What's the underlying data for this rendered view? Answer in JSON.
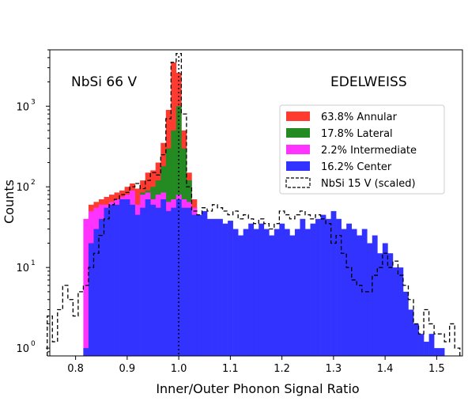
{
  "chart_data": {
    "type": "histogram",
    "xlabel": "Inner/Outer Phonon Signal Ratio",
    "ylabel": "Counts",
    "yscale": "log",
    "xlim": [
      0.75,
      1.55
    ],
    "ylim": [
      0.8,
      5000
    ],
    "xticks": [
      "0.8",
      "0.9",
      "1.0",
      "1.1",
      "1.2",
      "1.3",
      "1.4",
      "1.5"
    ],
    "yticks": [
      {
        "base": "10",
        "exp": "0",
        "value": 1
      },
      {
        "base": "10",
        "exp": "1",
        "value": 10
      },
      {
        "base": "10",
        "exp": "2",
        "value": 100
      },
      {
        "base": "10",
        "exp": "3",
        "value": 1000
      }
    ],
    "annotations": {
      "left": "NbSi 66 V",
      "right": "EDELWEISS"
    },
    "vline_x": 1.0,
    "bin_width": 0.01,
    "series": [
      {
        "name": "63.8% Annular",
        "color": "#ff3b30",
        "style": "filled",
        "points": [
          [
            0.83,
            60
          ],
          [
            0.84,
            65
          ],
          [
            0.85,
            70
          ],
          [
            0.86,
            75
          ],
          [
            0.87,
            80
          ],
          [
            0.88,
            85
          ],
          [
            0.89,
            90
          ],
          [
            0.9,
            100
          ],
          [
            0.91,
            110
          ],
          [
            0.92,
            95
          ],
          [
            0.93,
            120
          ],
          [
            0.94,
            150
          ],
          [
            0.95,
            160
          ],
          [
            0.96,
            200
          ],
          [
            0.97,
            350
          ],
          [
            0.98,
            900
          ],
          [
            0.99,
            3500
          ],
          [
            1.0,
            2600
          ],
          [
            1.01,
            500
          ],
          [
            1.02,
            150
          ],
          [
            1.03,
            70
          ]
        ]
      },
      {
        "name": "17.8% Lateral",
        "color": "#238b22",
        "style": "filled",
        "points": [
          [
            0.93,
            85
          ],
          [
            0.94,
            90
          ],
          [
            0.95,
            100
          ],
          [
            0.96,
            120
          ],
          [
            0.97,
            180
          ],
          [
            0.98,
            300
          ],
          [
            0.99,
            500
          ],
          [
            1.0,
            1000
          ],
          [
            1.01,
            300
          ],
          [
            1.02,
            120
          ]
        ]
      },
      {
        "name": "2.2% Intermediate",
        "color": "#ff33ff",
        "style": "filled",
        "points": [
          [
            0.82,
            40
          ],
          [
            0.83,
            50
          ],
          [
            0.84,
            55
          ],
          [
            0.85,
            60
          ],
          [
            0.86,
            60
          ],
          [
            0.87,
            65
          ],
          [
            0.88,
            70
          ],
          [
            0.89,
            75
          ],
          [
            0.9,
            80
          ],
          [
            0.91,
            90
          ],
          [
            0.92,
            60
          ],
          [
            0.93,
            80
          ],
          [
            0.94,
            85
          ],
          [
            0.95,
            70
          ],
          [
            0.96,
            80
          ],
          [
            0.97,
            85
          ],
          [
            0.98,
            65
          ],
          [
            0.99,
            70
          ],
          [
            1.0,
            80
          ],
          [
            1.01,
            70
          ],
          [
            1.02,
            65
          ],
          [
            1.03,
            55
          ]
        ]
      },
      {
        "name": "16.2% Center",
        "color": "#3333ff",
        "style": "filled",
        "points": [
          [
            0.82,
            1
          ],
          [
            0.83,
            20
          ],
          [
            0.84,
            30
          ],
          [
            0.85,
            40
          ],
          [
            0.86,
            55
          ],
          [
            0.87,
            60
          ],
          [
            0.88,
            60
          ],
          [
            0.89,
            70
          ],
          [
            0.9,
            70
          ],
          [
            0.91,
            60
          ],
          [
            0.92,
            45
          ],
          [
            0.93,
            55
          ],
          [
            0.94,
            70
          ],
          [
            0.95,
            60
          ],
          [
            0.96,
            55
          ],
          [
            0.97,
            70
          ],
          [
            0.98,
            50
          ],
          [
            0.99,
            55
          ],
          [
            1.0,
            70
          ],
          [
            1.01,
            55
          ],
          [
            1.02,
            55
          ],
          [
            1.03,
            45
          ],
          [
            1.04,
            45
          ],
          [
            1.05,
            50
          ],
          [
            1.06,
            40
          ],
          [
            1.07,
            40
          ],
          [
            1.08,
            40
          ],
          [
            1.09,
            35
          ],
          [
            1.1,
            38
          ],
          [
            1.11,
            30
          ],
          [
            1.12,
            25
          ],
          [
            1.13,
            30
          ],
          [
            1.14,
            35
          ],
          [
            1.15,
            30
          ],
          [
            1.16,
            35
          ],
          [
            1.17,
            30
          ],
          [
            1.18,
            25
          ],
          [
            1.19,
            30
          ],
          [
            1.2,
            35
          ],
          [
            1.21,
            30
          ],
          [
            1.22,
            25
          ],
          [
            1.23,
            30
          ],
          [
            1.24,
            40
          ],
          [
            1.25,
            30
          ],
          [
            1.26,
            35
          ],
          [
            1.27,
            40
          ],
          [
            1.28,
            45
          ],
          [
            1.29,
            40
          ],
          [
            1.3,
            50
          ],
          [
            1.31,
            40
          ],
          [
            1.32,
            30
          ],
          [
            1.33,
            35
          ],
          [
            1.34,
            30
          ],
          [
            1.35,
            25
          ],
          [
            1.36,
            30
          ],
          [
            1.37,
            20
          ],
          [
            1.38,
            25
          ],
          [
            1.39,
            15
          ],
          [
            1.4,
            20
          ],
          [
            1.41,
            15
          ],
          [
            1.42,
            10
          ],
          [
            1.43,
            10
          ],
          [
            1.44,
            5
          ],
          [
            1.45,
            3
          ],
          [
            1.46,
            2
          ],
          [
            1.47,
            1.5
          ],
          [
            1.48,
            1.2
          ],
          [
            1.49,
            1.5
          ],
          [
            1.5,
            1
          ],
          [
            1.51,
            1
          ]
        ]
      },
      {
        "name": "NbSi 15 V (scaled)",
        "color": "#000000",
        "style": "dashed-step",
        "points": [
          [
            0.75,
            2.5
          ],
          [
            0.76,
            1.2
          ],
          [
            0.77,
            3
          ],
          [
            0.78,
            6
          ],
          [
            0.79,
            4
          ],
          [
            0.8,
            2.5
          ],
          [
            0.81,
            5
          ],
          [
            0.82,
            6
          ],
          [
            0.83,
            10
          ],
          [
            0.84,
            15
          ],
          [
            0.85,
            25
          ],
          [
            0.86,
            40
          ],
          [
            0.87,
            60
          ],
          [
            0.88,
            70
          ],
          [
            0.89,
            80
          ],
          [
            0.9,
            85
          ],
          [
            0.91,
            100
          ],
          [
            0.92,
            110
          ],
          [
            0.93,
            95
          ],
          [
            0.94,
            120
          ],
          [
            0.95,
            150
          ],
          [
            0.96,
            140
          ],
          [
            0.97,
            250
          ],
          [
            0.98,
            700
          ],
          [
            0.99,
            3500
          ],
          [
            1.0,
            4500
          ],
          [
            1.01,
            800
          ],
          [
            1.02,
            100
          ],
          [
            1.03,
            50
          ],
          [
            1.04,
            45
          ],
          [
            1.05,
            55
          ],
          [
            1.06,
            50
          ],
          [
            1.07,
            60
          ],
          [
            1.08,
            55
          ],
          [
            1.09,
            50
          ],
          [
            1.1,
            45
          ],
          [
            1.11,
            50
          ],
          [
            1.12,
            40
          ],
          [
            1.13,
            45
          ],
          [
            1.14,
            40
          ],
          [
            1.15,
            35
          ],
          [
            1.16,
            40
          ],
          [
            1.17,
            35
          ],
          [
            1.18,
            30
          ],
          [
            1.19,
            35
          ],
          [
            1.2,
            50
          ],
          [
            1.21,
            45
          ],
          [
            1.22,
            40
          ],
          [
            1.23,
            45
          ],
          [
            1.24,
            50
          ],
          [
            1.25,
            45
          ],
          [
            1.26,
            40
          ],
          [
            1.27,
            45
          ],
          [
            1.28,
            40
          ],
          [
            1.29,
            35
          ],
          [
            1.3,
            20
          ],
          [
            1.31,
            25
          ],
          [
            1.32,
            15
          ],
          [
            1.33,
            10
          ],
          [
            1.34,
            7
          ],
          [
            1.35,
            6
          ],
          [
            1.36,
            5
          ],
          [
            1.37,
            5
          ],
          [
            1.38,
            8
          ],
          [
            1.39,
            10
          ],
          [
            1.4,
            15
          ],
          [
            1.41,
            10
          ],
          [
            1.42,
            12
          ],
          [
            1.43,
            8
          ],
          [
            1.44,
            6
          ],
          [
            1.45,
            4
          ],
          [
            1.46,
            2
          ],
          [
            1.47,
            1.5
          ],
          [
            1.48,
            3
          ],
          [
            1.49,
            2
          ],
          [
            1.5,
            1.5
          ],
          [
            1.51,
            1.5
          ],
          [
            1.52,
            1.2
          ],
          [
            1.53,
            2
          ],
          [
            1.54,
            1
          ]
        ]
      }
    ],
    "legend_position": "upper right"
  }
}
